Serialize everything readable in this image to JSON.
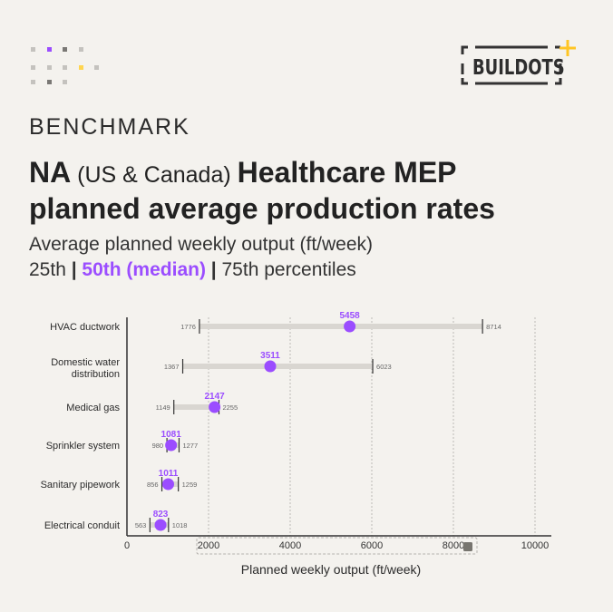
{
  "brand": {
    "logo_text": "BUILDOTS",
    "accent": "#ffc524"
  },
  "header": {
    "kicker": "BENCHMARK",
    "title_bold_1": "NA",
    "title_light": " (US & Canada) ",
    "title_bold_2": "Healthcare MEP",
    "title_line2": "planned average production rates",
    "subtitle_line1": "Average planned weekly output (ft/week)",
    "subtitle_p25": "25th",
    "subtitle_sep": " | ",
    "subtitle_p50": "50th (median)",
    "subtitle_p75": "75th percentiles"
  },
  "colors": {
    "median": "#9b4dff",
    "range": "#d9d6d1",
    "background": "#f4f2ee"
  },
  "chart_data": {
    "type": "dot-range",
    "xlabel": "Planned weekly output (ft/week)",
    "xlim": [
      0,
      10000
    ],
    "xticks": [
      0,
      2000,
      4000,
      6000,
      8000,
      10000
    ],
    "grid": "vertical dotted",
    "categories": [
      "HVAC ductwork",
      "Domestic water distribution",
      "Medical gas",
      "Sprinkler system",
      "Sanitary pipework",
      "Electrical conduit"
    ],
    "series": [
      {
        "name": "25th",
        "values": [
          1776,
          1367,
          1149,
          980,
          856,
          563
        ]
      },
      {
        "name": "50th (median)",
        "values": [
          5458,
          3511,
          2147,
          1081,
          1011,
          823
        ]
      },
      {
        "name": "75th",
        "values": [
          8714,
          6023,
          2255,
          1277,
          1259,
          1018
        ]
      }
    ]
  }
}
